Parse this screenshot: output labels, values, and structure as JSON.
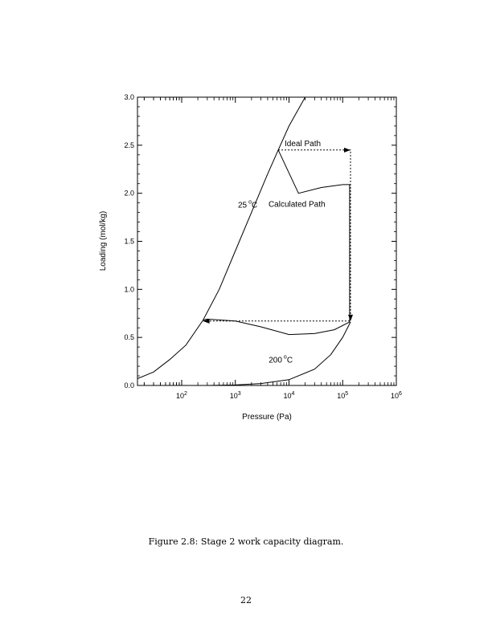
{
  "caption": "Figure 2.8: Stage 2 work capacity diagram.",
  "page_number": "22",
  "chart_data": {
    "type": "line",
    "title": "",
    "xlabel": "Pressure (Pa)",
    "ylabel": "Loading (mol/kg)",
    "xscale": "log",
    "xlim": [
      15,
      1000000
    ],
    "ylim": [
      0,
      3.0
    ],
    "yticks": [
      "0.0",
      "0.5",
      "1.0",
      "1.5",
      "2.0",
      "2.5",
      "3.0"
    ],
    "xticks": [
      {
        "base": "10",
        "exp": "2",
        "value": 100
      },
      {
        "base": "10",
        "exp": "3",
        "value": 1000
      },
      {
        "base": "10",
        "exp": "4",
        "value": 10000
      },
      {
        "base": "10",
        "exp": "5",
        "value": 100000
      },
      {
        "base": "10",
        "exp": "6",
        "value": 1000000
      }
    ],
    "grid": false,
    "series": [
      {
        "name": "25 °C",
        "style": "solid",
        "points": [
          [
            15,
            0.07
          ],
          [
            30,
            0.14
          ],
          [
            60,
            0.27
          ],
          [
            120,
            0.42
          ],
          [
            250,
            0.68
          ],
          [
            500,
            1.0
          ],
          [
            1000,
            1.4
          ],
          [
            2000,
            1.8
          ],
          [
            4000,
            2.2
          ],
          [
            6300,
            2.45
          ],
          [
            10000,
            2.7
          ],
          [
            20000,
            3.0
          ]
        ]
      },
      {
        "name": "200 °C",
        "style": "solid",
        "points": [
          [
            300,
            0.0
          ],
          [
            1000,
            0.005
          ],
          [
            3000,
            0.02
          ],
          [
            10000,
            0.06
          ],
          [
            30000,
            0.17
          ],
          [
            60000,
            0.32
          ],
          [
            100000,
            0.5
          ],
          [
            140000,
            0.66
          ]
        ]
      },
      {
        "name": "Calculated Path",
        "style": "solid",
        "points": [
          [
            6300,
            2.45
          ],
          [
            15000,
            2.0
          ],
          [
            40000,
            2.06
          ],
          [
            100000,
            2.09
          ],
          [
            135000,
            2.09
          ],
          [
            135000,
            0.66
          ],
          [
            70000,
            0.58
          ],
          [
            30000,
            0.54
          ],
          [
            10000,
            0.53
          ],
          [
            3000,
            0.61
          ],
          [
            1000,
            0.67
          ],
          [
            300,
            0.69
          ],
          [
            250,
            0.68
          ]
        ]
      },
      {
        "name": "Ideal Path",
        "style": "dashed",
        "points": [
          [
            6300,
            2.45
          ],
          [
            140000,
            2.45
          ],
          [
            140000,
            0.67
          ],
          [
            250,
            0.67
          ]
        ]
      }
    ],
    "annotations": [
      {
        "id": "25",
        "text": "25",
        "sup": "o",
        "unit": "C",
        "x": 1700,
        "y": 1.85
      },
      {
        "id": "200",
        "text": "200",
        "sup": "o",
        "unit": "C",
        "x": 7000,
        "y": 0.24
      },
      {
        "id": "calc",
        "text": "Calculated Path",
        "x": 14000,
        "y": 1.86
      },
      {
        "id": "ideal",
        "text": "Ideal Path",
        "x": 18000,
        "y": 2.49
      }
    ]
  }
}
